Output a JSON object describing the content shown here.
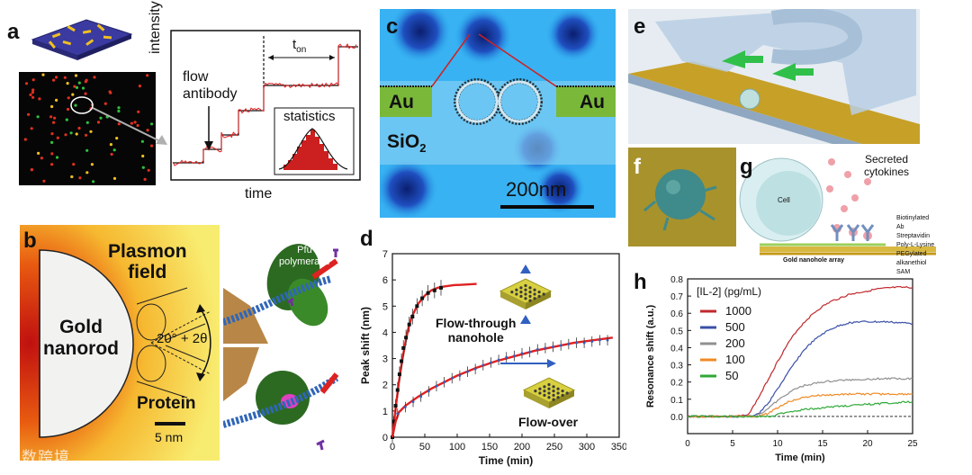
{
  "panels": {
    "a": {
      "letter": "a",
      "ylabel": "intensity",
      "xlabel": "time",
      "flow_label_1": "flow",
      "flow_label_2": "antibody",
      "ton_base": "t",
      "ton_sub": "on",
      "statistics_label": "statistics"
    },
    "b": {
      "letter": "b",
      "plasmon_1": "Plasmon",
      "plasmon_2": "field",
      "gold_1": "Gold",
      "gold_2": "nanorod",
      "angle_label": "20° + 2θ",
      "protein_label": "Protein",
      "scale_label": "5 nm",
      "pfu_1": "Pfu",
      "pfu_2": "polymerase"
    },
    "c": {
      "letter": "c",
      "au_left": "Au",
      "au_right": "Au",
      "sio2_base": "SiO",
      "sio2_sub": "2",
      "scale_label": "200nm"
    },
    "e": {
      "letter": "e"
    },
    "f": {
      "letter": "f"
    },
    "g": {
      "letter": "g",
      "cell_label": "Cell",
      "secreted_1": "Secreted",
      "secreted_2": "cytokines",
      "legend": [
        "Biotinylated Ab",
        "Streptavidin",
        "Poly-L-Lysine",
        "PEGylated",
        "alkanethiol SAM"
      ],
      "array_label": "Gold nanohole array"
    },
    "d": {
      "letter": "d",
      "flow_through_1": "Flow-through",
      "flow_through_2": "nanohole",
      "flow_over": "Flow-over"
    },
    "h": {
      "letter": "h"
    }
  },
  "watermark": "大数跨境",
  "chart_data": [
    {
      "id": "d",
      "type": "line",
      "xlabel": "Time (min)",
      "ylabel": "Peak shift (nm)",
      "xlim": [
        0,
        350
      ],
      "ylim": [
        0,
        7
      ],
      "xticks": [
        0,
        50,
        100,
        150,
        200,
        250,
        300,
        350
      ],
      "yticks": [
        0,
        1,
        2,
        3,
        4,
        5,
        6,
        7
      ],
      "series": [
        {
          "name": "Flow-through nanohole",
          "color": "#e02020",
          "fit": [
            [
              0,
              0
            ],
            [
              5,
              1.1
            ],
            [
              10,
              2.1
            ],
            [
              15,
              2.9
            ],
            [
              20,
              3.6
            ],
            [
              25,
              4.2
            ],
            [
              30,
              4.6
            ],
            [
              40,
              5.1
            ],
            [
              50,
              5.4
            ],
            [
              60,
              5.6
            ],
            [
              70,
              5.7
            ],
            [
              80,
              5.75
            ],
            [
              95,
              5.8
            ],
            [
              110,
              5.82
            ],
            [
              130,
              5.85
            ]
          ],
          "points": [
            [
              0,
              0
            ],
            [
              2,
              0.6
            ],
            [
              5,
              1.2
            ],
            [
              8,
              1.8
            ],
            [
              11,
              2.4
            ],
            [
              14,
              2.9
            ],
            [
              17,
              3.4
            ],
            [
              21,
              3.8
            ],
            [
              26,
              4.3
            ],
            [
              31,
              4.6
            ],
            [
              38,
              5.0
            ],
            [
              46,
              5.3
            ],
            [
              55,
              5.5
            ],
            [
              65,
              5.6
            ],
            [
              75,
              5.7
            ]
          ],
          "errors": [
            0.2,
            0.2,
            0.25,
            0.3,
            0.3,
            0.3,
            0.3,
            0.3,
            0.3,
            0.3,
            0.3,
            0.3,
            0.3,
            0.3,
            0.3
          ]
        },
        {
          "name": "Flow-over",
          "color": "#e02020",
          "fit": [
            [
              0,
              0
            ],
            [
              5,
              0.6
            ],
            [
              10,
              0.95
            ],
            [
              20,
              1.2
            ],
            [
              40,
              1.55
            ],
            [
              60,
              1.85
            ],
            [
              80,
              2.1
            ],
            [
              100,
              2.35
            ],
            [
              130,
              2.65
            ],
            [
              160,
              2.9
            ],
            [
              190,
              3.1
            ],
            [
              220,
              3.3
            ],
            [
              250,
              3.45
            ],
            [
              280,
              3.6
            ],
            [
              310,
              3.7
            ],
            [
              340,
              3.8
            ]
          ],
          "points": [
            [
              8,
              0.9
            ],
            [
              20,
              1.15
            ],
            [
              32,
              1.35
            ],
            [
              44,
              1.55
            ],
            [
              56,
              1.75
            ],
            [
              68,
              1.95
            ],
            [
              80,
              2.1
            ],
            [
              92,
              2.25
            ],
            [
              104,
              2.35
            ],
            [
              116,
              2.5
            ],
            [
              128,
              2.6
            ],
            [
              140,
              2.75
            ],
            [
              152,
              2.85
            ],
            [
              164,
              2.95
            ],
            [
              176,
              3.05
            ],
            [
              188,
              3.1
            ],
            [
              200,
              3.2
            ],
            [
              212,
              3.25
            ],
            [
              224,
              3.35
            ],
            [
              236,
              3.4
            ],
            [
              248,
              3.45
            ],
            [
              260,
              3.5
            ],
            [
              272,
              3.55
            ],
            [
              284,
              3.6
            ],
            [
              296,
              3.6
            ],
            [
              308,
              3.65
            ],
            [
              320,
              3.7
            ],
            [
              332,
              3.7
            ]
          ],
          "error": 0.2
        }
      ]
    },
    {
      "id": "h",
      "type": "line",
      "xlabel": "Time (min)",
      "ylabel": "Resonance shift (a.u.)",
      "xlim": [
        0,
        25
      ],
      "ylim": [
        -0.1,
        0.8
      ],
      "xticks": [
        0,
        5,
        10,
        15,
        20,
        25
      ],
      "yticks": [
        0.0,
        0.1,
        0.2,
        0.3,
        0.4,
        0.5,
        0.6,
        0.7,
        0.8
      ],
      "legend_title": "[IL-2] (pg/mL)",
      "legend_position": "top-left",
      "series": [
        {
          "name": "1000",
          "color": "#c0282d",
          "points": [
            [
              0,
              0
            ],
            [
              5,
              0
            ],
            [
              6.5,
              0.005
            ],
            [
              7,
              0.03
            ],
            [
              8,
              0.12
            ],
            [
              9,
              0.22
            ],
            [
              10,
              0.32
            ],
            [
              11,
              0.41
            ],
            [
              12,
              0.49
            ],
            [
              13,
              0.55
            ],
            [
              14,
              0.6
            ],
            [
              15,
              0.64
            ],
            [
              16,
              0.67
            ],
            [
              17,
              0.69
            ],
            [
              18,
              0.71
            ],
            [
              19,
              0.72
            ],
            [
              20,
              0.73
            ],
            [
              21,
              0.74
            ],
            [
              22,
              0.745
            ],
            [
              23,
              0.75
            ],
            [
              24,
              0.75
            ],
            [
              25,
              0.75
            ]
          ]
        },
        {
          "name": "500",
          "color": "#3a4fa8",
          "points": [
            [
              0,
              0
            ],
            [
              7,
              0
            ],
            [
              8,
              0.02
            ],
            [
              9,
              0.08
            ],
            [
              10,
              0.16
            ],
            [
              11,
              0.24
            ],
            [
              12,
              0.32
            ],
            [
              13,
              0.39
            ],
            [
              14,
              0.44
            ],
            [
              15,
              0.48
            ],
            [
              16,
              0.51
            ],
            [
              17,
              0.53
            ],
            [
              18,
              0.545
            ],
            [
              19,
              0.55
            ],
            [
              20,
              0.55
            ],
            [
              22,
              0.55
            ],
            [
              25,
              0.54
            ]
          ]
        },
        {
          "name": "200",
          "color": "#8f8f8f",
          "points": [
            [
              0,
              0
            ],
            [
              7.5,
              0
            ],
            [
              8.5,
              0.03
            ],
            [
              10,
              0.09
            ],
            [
              11,
              0.13
            ],
            [
              12,
              0.16
            ],
            [
              13,
              0.18
            ],
            [
              14,
              0.19
            ],
            [
              15,
              0.2
            ],
            [
              17,
              0.21
            ],
            [
              19,
              0.215
            ],
            [
              22,
              0.22
            ],
            [
              25,
              0.22
            ]
          ]
        },
        {
          "name": "100",
          "color": "#f08a24",
          "points": [
            [
              0,
              0
            ],
            [
              8,
              0
            ],
            [
              9,
              0.02
            ],
            [
              10,
              0.05
            ],
            [
              11,
              0.08
            ],
            [
              12,
              0.1
            ],
            [
              13,
              0.11
            ],
            [
              14,
              0.12
            ],
            [
              16,
              0.125
            ],
            [
              18,
              0.13
            ],
            [
              21,
              0.13
            ],
            [
              25,
              0.13
            ]
          ]
        },
        {
          "name": "50",
          "color": "#2ea836",
          "points": [
            [
              0,
              0
            ],
            [
              9,
              0
            ],
            [
              10,
              0.01
            ],
            [
              11,
              0.025
            ],
            [
              13,
              0.04
            ],
            [
              15,
              0.05
            ],
            [
              17,
              0.06
            ],
            [
              20,
              0.07
            ],
            [
              23,
              0.08
            ],
            [
              25,
              0.085
            ]
          ]
        }
      ]
    }
  ]
}
